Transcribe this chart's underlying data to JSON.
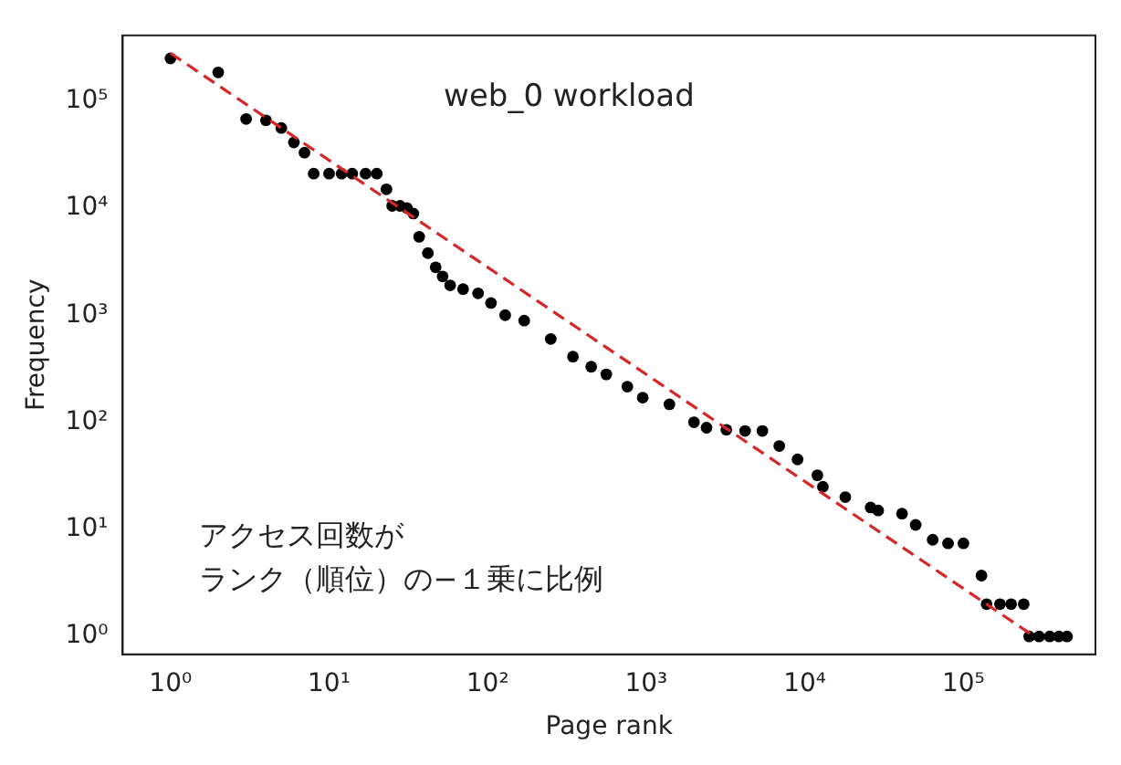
{
  "chart_data": {
    "type": "scatter",
    "xlabel": "Page rank",
    "ylabel": "Frequency",
    "log": "xy",
    "grid": false,
    "legend": false,
    "marker": "circle",
    "xlim": [
      0.5,
      680000
    ],
    "ylim": [
      0.68,
      410000
    ],
    "xticks": [
      {
        "value": 1,
        "label": "10⁰"
      },
      {
        "value": 10,
        "label": "10¹"
      },
      {
        "value": 100,
        "label": "10²"
      },
      {
        "value": 1000,
        "label": "10³"
      },
      {
        "value": 10000,
        "label": "10⁴"
      },
      {
        "value": 100000,
        "label": "10⁵"
      }
    ],
    "yticks": [
      {
        "value": 1,
        "label": "10⁰"
      },
      {
        "value": 10,
        "label": "10¹"
      },
      {
        "value": 100,
        "label": "10²"
      },
      {
        "value": 1000,
        "label": "10³"
      },
      {
        "value": 10000,
        "label": "10⁴"
      },
      {
        "value": 100000,
        "label": "10⁵"
      }
    ],
    "annotations": [
      "web_0 workload",
      "アクセス回数が",
      "ランク（順位）の−１乗に比例"
    ],
    "series": [
      {
        "color": "#000000",
        "x": [
          1,
          2,
          3,
          4,
          5,
          6,
          7,
          8,
          10,
          12,
          14,
          17,
          20,
          23,
          25,
          28,
          31,
          34,
          37,
          42,
          47,
          52,
          58,
          70,
          87,
          105,
          129,
          170,
          250,
          345,
          450,
          560,
          760,
          950,
          1400,
          2000,
          2400,
          3200,
          4200,
          5400,
          6900,
          9000,
          12000,
          13000,
          18000,
          26000,
          29000,
          41000,
          50000,
          64000,
          80000,
          100000,
          130000,
          140000,
          170000,
          200000,
          240000,
          260000,
          300000,
          350000,
          400000,
          450000
        ],
        "values": [
          250000,
          185000,
          68000,
          66000,
          56000,
          41000,
          33000,
          21000,
          21000,
          21000,
          21000,
          21000,
          21000,
          15000,
          10500,
          10500,
          10000,
          8900,
          5400,
          3800,
          2800,
          2300,
          1900,
          1750,
          1600,
          1300,
          1000,
          890,
          600,
          410,
          330,
          280,
          215,
          170,
          147,
          100,
          89,
          85,
          83,
          83,
          60,
          45,
          32,
          25,
          20,
          16,
          15,
          14,
          11,
          8,
          7.4,
          7.4,
          3.7,
          2,
          2,
          2,
          2,
          1,
          1,
          1,
          1,
          1
        ]
      },
      {
        "type": "line",
        "color": "#d62728",
        "line_style": "dashed",
        "marker": "none",
        "x": [
          1,
          280000
        ],
        "values": [
          280000,
          1
        ]
      }
    ]
  }
}
